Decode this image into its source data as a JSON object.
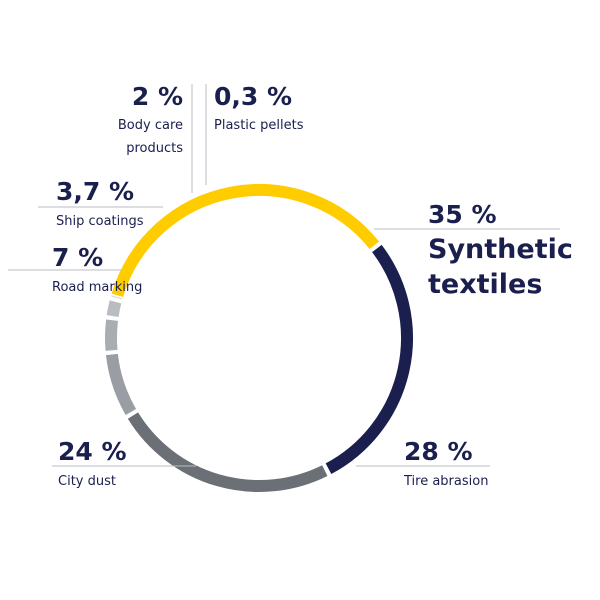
{
  "chart_data": {
    "type": "donut",
    "slices": [
      {
        "key": "synthetic",
        "value_label": "35 %",
        "value": 35,
        "label_lines": [
          "Synthetic",
          "textiles"
        ],
        "color": "#ffcc00"
      },
      {
        "key": "tire",
        "value_label": "28 %",
        "value": 28,
        "label_lines": [
          "Tire abrasion"
        ],
        "color": "#1a1f4e"
      },
      {
        "key": "city",
        "value_label": "24 %",
        "value": 24,
        "label_lines": [
          "City dust"
        ],
        "color": "#6b7077"
      },
      {
        "key": "road",
        "value_label": "7 %",
        "value": 7,
        "label_lines": [
          "Road marking"
        ],
        "color": "#9a9ea4"
      },
      {
        "key": "ship",
        "value_label": "3,7 %",
        "value": 3.7,
        "label_lines": [
          "Ship coatings"
        ],
        "color": "#a9adb2"
      },
      {
        "key": "body",
        "value_label": "2 %",
        "value": 2,
        "label_lines": [
          "Body care",
          "products"
        ],
        "color": "#b9bdc2"
      },
      {
        "key": "pellets",
        "value_label": "0,3 %",
        "value": 0.3,
        "label_lines": [
          "Plastic pellets"
        ],
        "color": "#d3d6d9"
      }
    ]
  }
}
